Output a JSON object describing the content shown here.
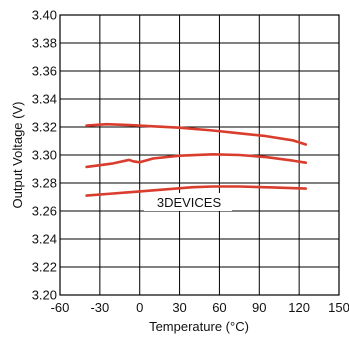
{
  "chart_data": {
    "type": "line",
    "title": "",
    "xlabel": "Temperature (°C)",
    "ylabel": "Output Voltage (V)",
    "xlim": [
      -60,
      150
    ],
    "ylim": [
      3.2,
      3.4
    ],
    "x_ticks": [
      -60,
      -30,
      0,
      30,
      60,
      90,
      120,
      150
    ],
    "x_tick_labels": [
      "-60",
      "-30",
      "0",
      "30",
      "60",
      "90",
      "120",
      "150"
    ],
    "y_ticks": [
      3.2,
      3.22,
      3.24,
      3.26,
      3.28,
      3.3,
      3.32,
      3.34,
      3.36,
      3.38,
      3.4
    ],
    "y_tick_labels": [
      "3.20",
      "3.22",
      "3.24",
      "3.26",
      "3.28",
      "3.30",
      "3.32",
      "3.34",
      "3.36",
      "3.38",
      "3.40"
    ],
    "grid": true,
    "series_color": "#d93d2e",
    "series": [
      {
        "x": [
          -40,
          -25,
          -10,
          10,
          30,
          55,
          75,
          95,
          115,
          125
        ],
        "y": [
          3.321,
          3.322,
          3.3215,
          3.3205,
          3.3195,
          3.3175,
          3.3155,
          3.3135,
          3.3105,
          3.3075
        ]
      },
      {
        "x": [
          -40,
          -20,
          -8,
          -5,
          0,
          10,
          30,
          55,
          75,
          95,
          115,
          125
        ],
        "y": [
          3.2915,
          3.294,
          3.2965,
          3.2955,
          3.2948,
          3.2975,
          3.2995,
          3.3005,
          3.3,
          3.2985,
          3.296,
          3.2945
        ]
      },
      {
        "x": [
          -40,
          -20,
          0,
          20,
          40,
          55,
          75,
          100,
          125
        ],
        "y": [
          3.271,
          3.2725,
          3.274,
          3.2755,
          3.277,
          3.2775,
          3.2775,
          3.2768,
          3.276
        ]
      }
    ]
  },
  "watermark": {
    "text": "3DEVICES"
  }
}
